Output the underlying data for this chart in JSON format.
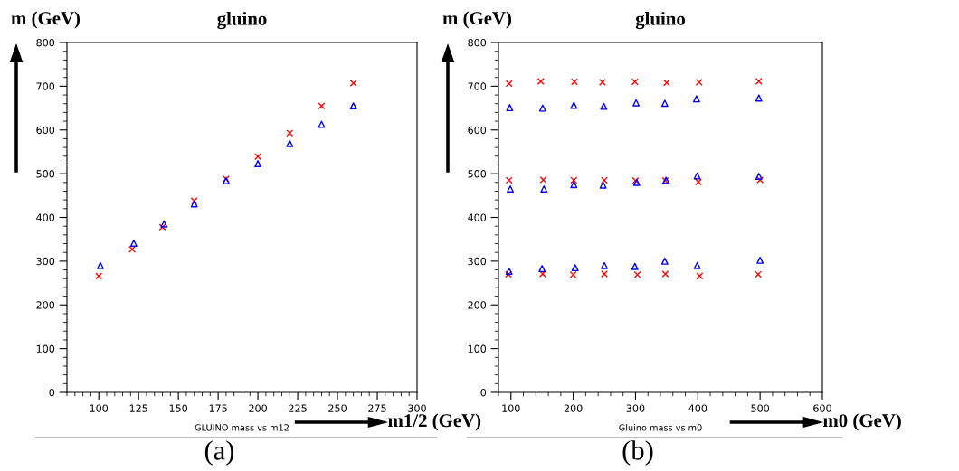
{
  "chart_data": [
    {
      "type": "scatter",
      "title": "gluino",
      "ylabel": "m (GeV)",
      "xlabel": "GLUINO mass vs m12",
      "annotations": [
        "m1/2 (GeV)",
        "(a)"
      ],
      "xlim": [
        80,
        300
      ],
      "xticks": [
        100,
        125,
        150,
        175,
        200,
        225,
        250,
        275,
        300
      ],
      "ylim": [
        0,
        800
      ],
      "yticks": [
        0,
        100,
        200,
        300,
        400,
        500,
        600,
        700,
        800
      ],
      "grid": false,
      "legend": false,
      "series": [
        {
          "color": "#ff0000",
          "marker": "cross",
          "x": [
            100,
            121,
            140,
            160,
            180,
            200,
            220,
            240,
            260
          ],
          "values": [
            266,
            327,
            378,
            438,
            488,
            539,
            593,
            655,
            707
          ]
        },
        {
          "color": "#0000ff",
          "marker": "triangle",
          "x": [
            101,
            122,
            141,
            160,
            180,
            200,
            220,
            240,
            260
          ],
          "values": [
            290,
            341,
            385,
            431,
            484,
            523,
            569,
            613,
            655
          ]
        }
      ]
    },
    {
      "type": "scatter",
      "title": "gluino",
      "ylabel": "m (GeV)",
      "xlabel": "Gluino mass vs m0",
      "annotations": [
        "m0 (GeV)",
        "(b)"
      ],
      "xlim": [
        80,
        600
      ],
      "xticks": [
        100,
        200,
        300,
        400,
        500,
        600
      ],
      "ylim": [
        0,
        800
      ],
      "yticks": [
        0,
        100,
        200,
        300,
        400,
        500,
        600,
        700,
        800
      ],
      "grid": false,
      "legend": false,
      "series": [
        {
          "color": "#ff0000",
          "marker": "cross",
          "x": [
            97,
            148,
            202,
            247,
            299,
            350,
            402,
            498,
            97,
            152,
            201,
            250,
            300,
            348,
            401,
            500,
            96,
            151,
            200,
            250,
            303,
            348,
            403,
            497
          ],
          "values": [
            706,
            711,
            710,
            709,
            710,
            708,
            709,
            711,
            485,
            486,
            485,
            485,
            484,
            484,
            481,
            486,
            270,
            271,
            269,
            271,
            269,
            271,
            266,
            270
          ]
        },
        {
          "color": "#0000ff",
          "marker": "triangle",
          "x": [
            98,
            151,
            201,
            249,
            301,
            347,
            398,
            498,
            99,
            153,
            201,
            248,
            302,
            349,
            399,
            498,
            97,
            150,
            203,
            250,
            299,
            347,
            399,
            500
          ],
          "values": [
            651,
            650,
            656,
            654,
            662,
            661,
            671,
            673,
            465,
            465,
            475,
            474,
            480,
            485,
            495,
            494,
            277,
            283,
            285,
            290,
            288,
            300,
            290,
            302
          ]
        }
      ]
    }
  ]
}
